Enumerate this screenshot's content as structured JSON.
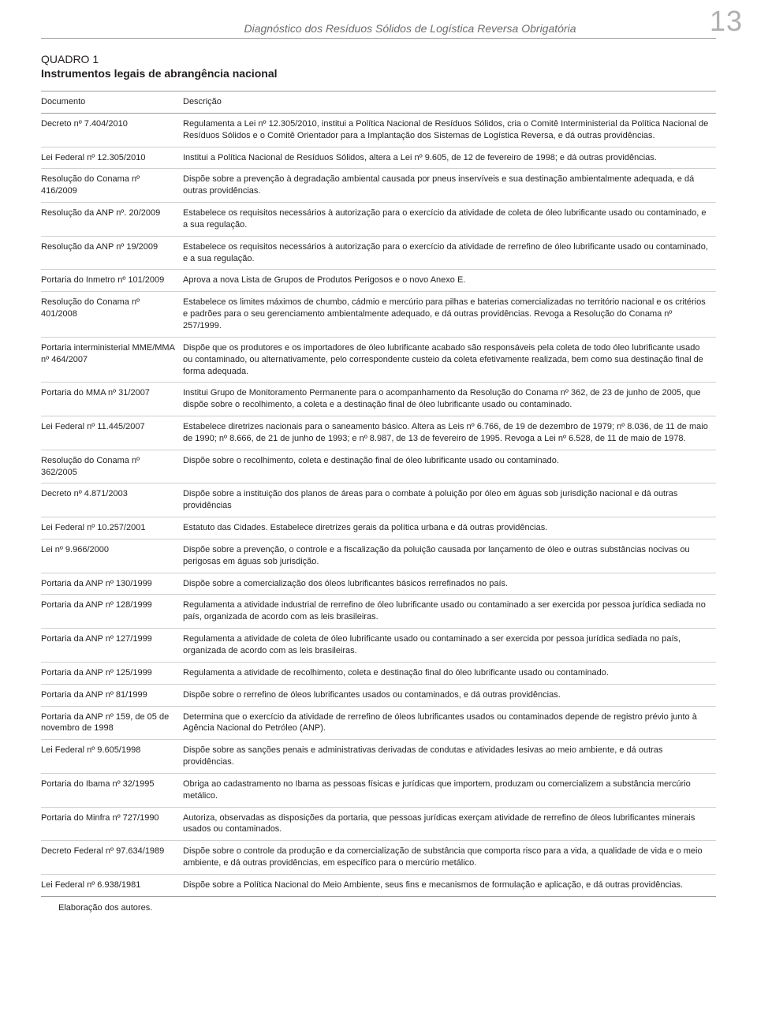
{
  "page": {
    "running_head": "Diagnóstico dos Resíduos Sólidos de Logística Reversa Obrigatória",
    "page_number": "13"
  },
  "quadro": {
    "label": "QUADRO 1",
    "title": "Instrumentos legais de abrangência nacional"
  },
  "table": {
    "header_doc": "Documento",
    "header_desc": "Descrição",
    "rows": [
      {
        "doc": "Decreto nº 7.404/2010",
        "desc": "Regulamenta a Lei nº 12.305/2010, institui a Política Nacional de Resíduos Sólidos, cria o Comitê Interministerial da Política Nacional de Resíduos Sólidos e o Comitê Orientador para a Implantação dos Sistemas de Logística Reversa, e dá outras providências."
      },
      {
        "doc": "Lei Federal nº 12.305/2010",
        "desc": "Institui a Política Nacional de Resíduos Sólidos, altera a Lei nº 9.605, de 12 de fevereiro de 1998; e dá outras providências."
      },
      {
        "doc": "Resolução do Conama nº 416/2009",
        "desc": "Dispõe sobre a prevenção à degradação ambiental causada por pneus inservíveis e sua destinação ambientalmente adequada, e dá outras providências."
      },
      {
        "doc": "Resolução da ANP nº. 20/2009",
        "desc": "Estabelece os requisitos necessários à autorização para o exercício da atividade de coleta de óleo lubrificante usado ou contaminado, e a sua regulação."
      },
      {
        "doc": "Resolução da ANP nº 19/2009",
        "desc": "Estabelece os requisitos necessários à autorização para o exercício da atividade de rerrefino de óleo lubrificante usado ou contaminado, e a sua regulação."
      },
      {
        "doc": "Portaria do Inmetro nº 101/2009",
        "desc": "Aprova a nova Lista de Grupos de Produtos Perigosos e o novo Anexo E."
      },
      {
        "doc": "Resolução do Conama nº 401/2008",
        "desc": "Estabelece os limites máximos de chumbo, cádmio e mercúrio para pilhas e baterias comercializadas no território nacional e os critérios e padrões para o seu gerenciamento ambientalmente adequado, e dá outras providências. Revoga a Resolução do Conama nº 257/1999."
      },
      {
        "doc": "Portaria interministerial MME/MMA nº 464/2007",
        "desc": "Dispõe que os produtores e os importadores de óleo lubrificante acabado são responsáveis pela coleta de todo óleo lubrificante usado ou contaminado, ou alternativamente, pelo correspondente custeio da coleta efetivamente realizada, bem como sua destinação final de forma adequada."
      },
      {
        "doc": "Portaria do MMA nº 31/2007",
        "desc": "Institui Grupo de Monitoramento Permanente para o acompanhamento da Resolução do Conama nº 362, de 23 de junho de 2005, que dispõe sobre o recolhimento, a coleta e a destinação final de óleo lubrificante usado ou contaminado."
      },
      {
        "doc": "Lei Federal nº 11.445/2007",
        "desc": "Estabelece diretrizes nacionais para o saneamento básico. Altera as Leis nº 6.766, de 19 de dezembro de 1979; nº 8.036, de 11 de maio de 1990; nº 8.666, de 21 de junho de 1993; e nº 8.987, de 13 de fevereiro de 1995. Revoga a Lei nº 6.528, de 11 de maio de 1978."
      },
      {
        "doc": "Resolução do Conama nº 362/2005",
        "desc": "Dispõe sobre o recolhimento, coleta e destinação final de óleo lubrificante usado ou contaminado."
      },
      {
        "doc": "Decreto nº 4.871/2003",
        "desc": "Dispõe sobre a instituição dos planos de áreas para o combate à poluição por óleo em águas sob jurisdição nacional e dá outras providências"
      },
      {
        "doc": "Lei Federal nº 10.257/2001",
        "desc": "Estatuto das Cidades. Estabelece diretrizes gerais da política urbana e dá outras providências."
      },
      {
        "doc": "Lei nº 9.966/2000",
        "desc": "Dispõe sobre a prevenção, o controle e a fiscalização da poluição causada por lançamento de óleo e outras substâncias nocivas ou perigosas em águas sob jurisdição."
      },
      {
        "doc": "Portaria da ANP nº 130/1999",
        "desc": "Dispõe sobre a comercialização dos óleos lubrificantes básicos rerrefinados no país."
      },
      {
        "doc": "Portaria da ANP nº 128/1999",
        "desc": "Regulamenta a atividade industrial de rerrefino de óleo lubrificante usado ou contaminado a ser exercida por pessoa jurídica sediada no país, organizada de acordo com as leis brasileiras."
      },
      {
        "doc": "Portaria da ANP nº 127/1999",
        "desc": "Regulamenta a atividade de coleta de óleo lubrificante usado ou contaminado a ser exercida por pessoa jurídica sediada no país, organizada de acordo com as leis brasileiras."
      },
      {
        "doc": "Portaria da ANP nº 125/1999",
        "desc": "Regulamenta a atividade de recolhimento, coleta e destinação final do óleo lubrificante usado ou contaminado."
      },
      {
        "doc": "Portaria da ANP nº 81/1999",
        "desc": "Dispõe sobre o rerrefino de óleos lubrificantes usados ou contaminados, e dá outras providências."
      },
      {
        "doc": "Portaria da ANP nº 159, de 05 de novembro de 1998",
        "desc": "Determina que o exercício da atividade de rerrefino de óleos lubrificantes usados ou contaminados depende de registro prévio junto à Agência Nacional do Petróleo (ANP)."
      },
      {
        "doc": "Lei Federal nº 9.605/1998",
        "desc": "Dispõe sobre as sanções penais e administrativas derivadas de condutas e atividades lesivas ao meio ambiente, e dá outras providências."
      },
      {
        "doc": "Portaria do Ibama nº 32/1995",
        "desc": "Obriga ao cadastramento no Ibama as pessoas físicas e jurídicas que importem, produzam ou comercializem a substância mercúrio metálico."
      },
      {
        "doc": "Portaria do Minfra nº 727/1990",
        "desc": "Autoriza, observadas as disposições da portaria, que pessoas jurídicas exerçam atividade de rerrefino de óleos lubrificantes minerais usados ou contaminados."
      },
      {
        "doc": "Decreto Federal nº 97.634/1989",
        "desc": "Dispõe sobre o controle da produção e da comercialização de substância que comporta risco para a vida, a qualidade de vida e o meio ambiente, e dá outras providências, em específico para o mercúrio metálico."
      },
      {
        "doc": "Lei Federal nº 6.938/1981",
        "desc": "Dispõe sobre a Política Nacional do Meio Ambiente, seus fins e mecanismos de formulação e aplicação, e dá outras providências."
      }
    ]
  },
  "source": "Elaboração dos autores."
}
